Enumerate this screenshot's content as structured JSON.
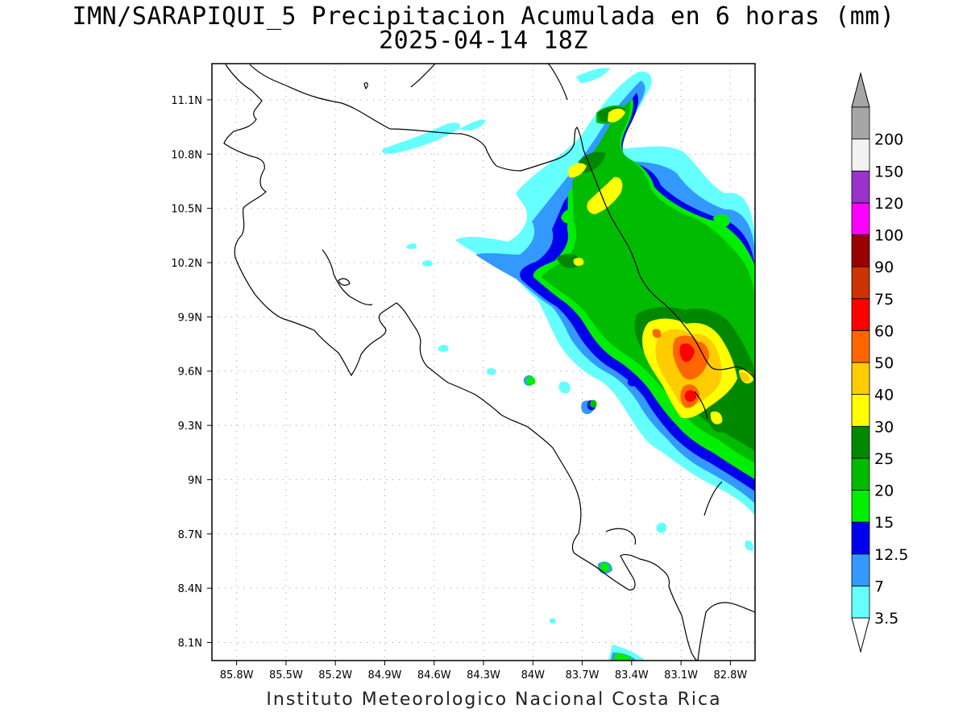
{
  "title": {
    "line1": "IMN/SARAPIQUI_5 Precipitacion Acumulada en 6 horas (mm)",
    "line2": "2025-04-14 18Z"
  },
  "footer": "Instituto Meteorologico Nacional Costa Rica",
  "axes": {
    "lon_ticks": [
      "85.8W",
      "85.5W",
      "85.2W",
      "84.9W",
      "84.6W",
      "84.3W",
      "84W",
      "83.7W",
      "83.4W",
      "83.1W",
      "82.8W"
    ],
    "lat_ticks": [
      "11.1N",
      "10.8N",
      "10.5N",
      "10.2N",
      "9.9N",
      "9.6N",
      "9.3N",
      "9N",
      "8.7N",
      "8.4N",
      "8.1N"
    ],
    "lon_range": [
      -85.95,
      -82.65
    ],
    "lat_range": [
      8.0,
      11.3
    ],
    "grid": true
  },
  "colorbar": {
    "levels": [
      "3.5",
      "7",
      "12.5",
      "15",
      "20",
      "25",
      "30",
      "40",
      "50",
      "60",
      "75",
      "90",
      "100",
      "120",
      "150",
      "200"
    ],
    "colors": [
      "#66ffff",
      "#3399ff",
      "#0000ee",
      "#00ee00",
      "#00bb00",
      "#008800",
      "#ffff00",
      "#ffcc00",
      "#ff6600",
      "#ff0000",
      "#cc3300",
      "#990000",
      "#ff00ff",
      "#9933cc",
      "#f2f2f2",
      "#a6a6a6"
    ],
    "triangle_bottom_color": "#ffffff",
    "triangle_top_color": "#a6a6a6"
  },
  "map": {
    "region": "Costa Rica",
    "coastline_color": "#000000",
    "background": "#ffffff"
  }
}
